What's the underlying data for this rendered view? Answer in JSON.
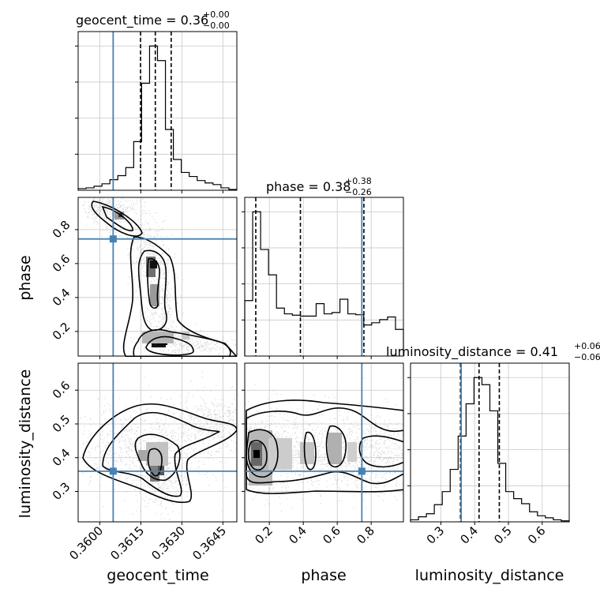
{
  "chart_data": {
    "type": "corner",
    "parameters": [
      "geocent_time",
      "phase",
      "luminosity_distance"
    ],
    "truth": {
      "geocent_time": 0.36049,
      "phase": 0.745,
      "luminosity_distance": 0.36
    },
    "titles": [
      {
        "param": "geocent_time",
        "prefix": "geocent_time = 0.36",
        "plus": "+0.00",
        "minus": "−0.00"
      },
      {
        "param": "phase",
        "prefix": "phase = 0.38",
        "plus": "+0.38",
        "minus": "−0.26"
      },
      {
        "param": "luminosity_distance",
        "prefix": "luminosity_distance = 0.41",
        "plus": "+0.06",
        "minus": "−0.06"
      }
    ],
    "axes": {
      "geocent_time": {
        "range": [
          0.35921,
          0.36501
        ],
        "ticks": [
          0.36,
          0.3615,
          0.363,
          0.3645
        ],
        "tick_labels": [
          "0.3600",
          "0.3615",
          "0.3630",
          "0.3645"
        ]
      },
      "phase": {
        "range": [
          0.055,
          0.99
        ],
        "ticks": [
          0.2,
          0.4,
          0.6,
          0.8
        ],
        "tick_labels": [
          "0.2",
          "0.4",
          "0.6",
          "0.8"
        ]
      },
      "luminosity_distance": {
        "range": [
          0.21,
          0.68
        ],
        "ticks": [
          0.3,
          0.4,
          0.5,
          0.6
        ],
        "tick_labels": [
          "0.3",
          "0.4",
          "0.5",
          "0.6"
        ]
      }
    },
    "histograms": {
      "geocent_time": {
        "edges": [
          0.35921,
          0.3595,
          0.35979,
          0.36008,
          0.36037,
          0.36066,
          0.36095,
          0.36124,
          0.36153,
          0.36182,
          0.36211,
          0.3624,
          0.36269,
          0.36298,
          0.36327,
          0.36356,
          0.36385,
          0.36414,
          0.36443,
          0.36472,
          0.36501
        ],
        "counts": [
          2,
          3,
          5,
          8,
          13,
          18,
          28,
          60,
          132,
          178,
          160,
          75,
          38,
          22,
          17,
          12,
          9,
          7,
          3,
          1
        ],
        "quantiles": [
          0.36149,
          0.36203,
          0.36261
        ]
      },
      "phase": {
        "edges": [
          0.055,
          0.10175,
          0.1485,
          0.19525,
          0.242,
          0.28875,
          0.3355,
          0.38225,
          0.429,
          0.47575,
          0.5225,
          0.56925,
          0.616,
          0.66275,
          0.7095,
          0.75625,
          0.803,
          0.84975,
          0.8965,
          0.94325,
          0.99
        ],
        "counts": [
          125,
          325,
          240,
          183,
          108,
          95,
          92,
          90,
          90,
          118,
          95,
          98,
          128,
          95,
          93,
          70,
          75,
          82,
          88,
          60
        ],
        "quantiles": [
          0.12,
          0.383,
          0.757
        ]
      },
      "luminosity_distance": {
        "edges": [
          0.21,
          0.2335,
          0.257,
          0.2805,
          0.304,
          0.3275,
          0.351,
          0.3745,
          0.398,
          0.4215,
          0.445,
          0.4685,
          0.492,
          0.5155,
          0.539,
          0.5625,
          0.586,
          0.6095,
          0.633,
          0.6565,
          0.68
        ],
        "counts": [
          2,
          5,
          8,
          17,
          30,
          52,
          85,
          117,
          143,
          136,
          110,
          58,
          30,
          23,
          18,
          10,
          6,
          4,
          2,
          1
        ],
        "quantiles": [
          0.358,
          0.413,
          0.473
        ]
      }
    },
    "grid": true
  }
}
